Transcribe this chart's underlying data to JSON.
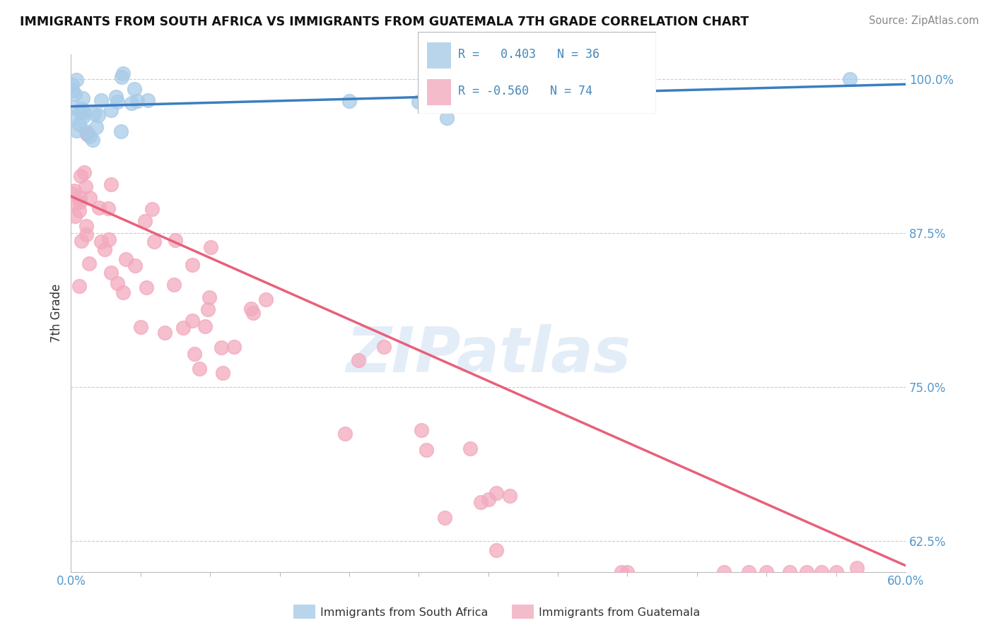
{
  "title": "IMMIGRANTS FROM SOUTH AFRICA VS IMMIGRANTS FROM GUATEMALA 7TH GRADE CORRELATION CHART",
  "source": "Source: ZipAtlas.com",
  "ylabel": "7th Grade",
  "blue_color": "#A8CBE8",
  "pink_color": "#F2AABE",
  "blue_line_color": "#3B7EC0",
  "pink_line_color": "#E8607A",
  "watermark_text": "ZIPatlas",
  "legend_entry1": "R =   0.403   N = 36",
  "legend_entry2": "R = -0.560   N = 74",
  "legend_label1": "Immigrants from South Africa",
  "legend_label2": "Immigrants from Guatemala",
  "xlim": [
    0.0,
    0.6
  ],
  "ylim": [
    0.6,
    1.02
  ],
  "yticks": [
    0.625,
    0.75,
    0.875,
    1.0
  ],
  "ytick_labels": [
    "62.5%",
    "75.0%",
    "87.5%",
    "100.0%"
  ],
  "xtick_labels": [
    "0.0%",
    "60.0%"
  ],
  "blue_line_x": [
    0.0,
    0.6
  ],
  "blue_line_y": [
    0.978,
    0.996
  ],
  "pink_line_x": [
    0.0,
    0.6
  ],
  "pink_line_y": [
    0.905,
    0.605
  ],
  "background_color": "#FFFFFF",
  "grid_color": "#CCCCCC"
}
